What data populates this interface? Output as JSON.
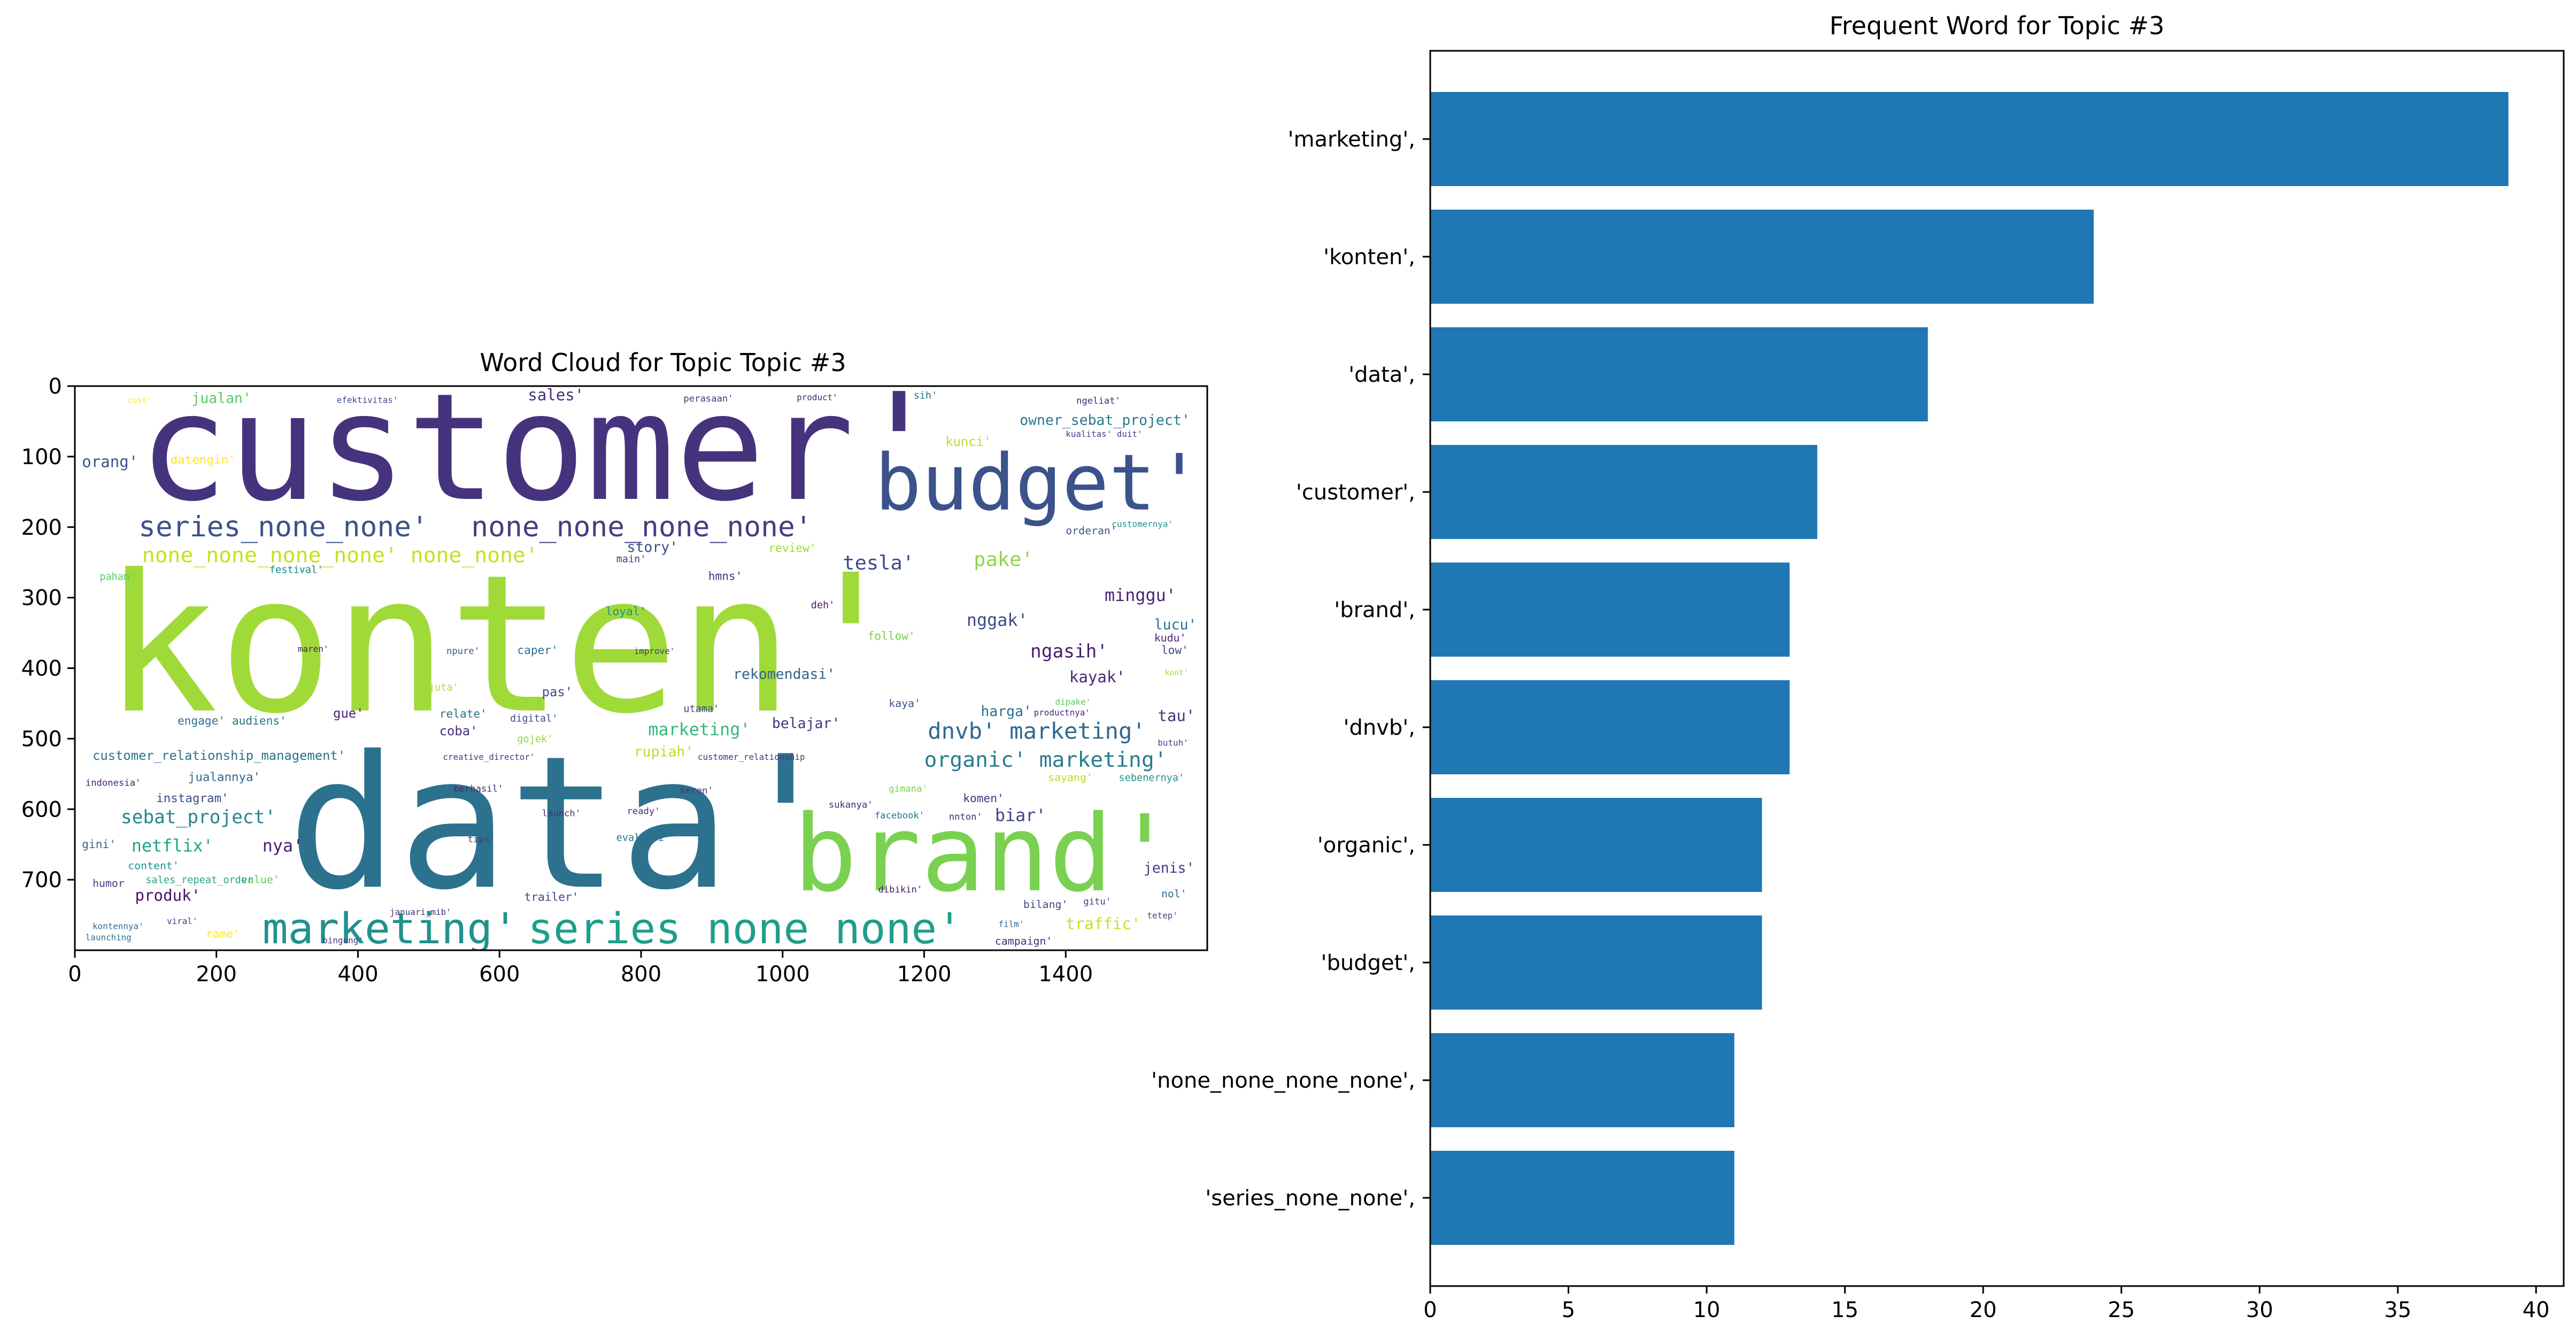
{
  "chart_data": [
    {
      "type": "image",
      "subtype": "wordcloud",
      "title": "Word Cloud for Topic Topic #3",
      "xlim": [
        0,
        1600
      ],
      "ylim": [
        800,
        0
      ],
      "x_ticks": [
        0,
        200,
        400,
        600,
        800,
        1000,
        1200,
        1400
      ],
      "y_ticks": [
        0,
        100,
        200,
        300,
        400,
        500,
        600,
        700
      ],
      "words": [
        {
          "text": "customer'",
          "x": 90,
          "y": 160,
          "size": 210,
          "color": "#46337e"
        },
        {
          "text": "konten'",
          "x": 40,
          "y": 460,
          "size": 270,
          "color": "#a0da39"
        },
        {
          "text": "data'",
          "x": 300,
          "y": 710,
          "size": 260,
          "color": "#2c728e"
        },
        {
          "text": "budget'",
          "x": 1130,
          "y": 175,
          "size": 110,
          "color": "#3b528b"
        },
        {
          "text": "brand'",
          "x": 1015,
          "y": 715,
          "size": 150,
          "color": "#7ad151"
        },
        {
          "text": "series_none_none'",
          "x": 90,
          "y": 213,
          "size": 40,
          "color": "#3b528b"
        },
        {
          "text": "none_none_none_none'",
          "x": 560,
          "y": 213,
          "size": 40,
          "color": "#433e85"
        },
        {
          "text": "none_none_none_none' none_none'",
          "x": 95,
          "y": 250,
          "size": 30,
          "color": "#c8e020"
        },
        {
          "text": "marketing'",
          "x": 265,
          "y": 790,
          "size": 60,
          "color": "#21918c"
        },
        {
          "text": "series_none_none'",
          "x": 640,
          "y": 790,
          "size": 60,
          "color": "#1f9e89"
        },
        {
          "text": "dnvb' marketing'",
          "x": 1205,
          "y": 500,
          "size": 32,
          "color": "#31688e"
        },
        {
          "text": "organic' marketing'",
          "x": 1200,
          "y": 540,
          "size": 30,
          "color": "#287d8e"
        },
        {
          "text": "tesla'",
          "x": 1085,
          "y": 260,
          "size": 28,
          "color": "#3e4a89"
        },
        {
          "text": "pake'",
          "x": 1270,
          "y": 255,
          "size": 28,
          "color": "#8fd744"
        },
        {
          "text": "sales'",
          "x": 640,
          "y": 20,
          "size": 22,
          "color": "#472d7b"
        },
        {
          "text": "jualan'",
          "x": 165,
          "y": 24,
          "size": 20,
          "color": "#5ec962"
        },
        {
          "text": "owner_sebat_project'",
          "x": 1335,
          "y": 55,
          "size": 20,
          "color": "#2a788e"
        },
        {
          "text": "kunci'",
          "x": 1230,
          "y": 85,
          "size": 18,
          "color": "#b5de2b"
        },
        {
          "text": "orang'",
          "x": 10,
          "y": 115,
          "size": 22,
          "color": "#3b528b"
        },
        {
          "text": "datengin'",
          "x": 135,
          "y": 110,
          "size": 17,
          "color": "#fde725"
        },
        {
          "text": "story'",
          "x": 780,
          "y": 235,
          "size": 20,
          "color": "#3e4a89"
        },
        {
          "text": "review'",
          "x": 980,
          "y": 235,
          "size": 16,
          "color": "#a0da39"
        },
        {
          "text": "minggu'",
          "x": 1455,
          "y": 305,
          "size": 24,
          "color": "#482677"
        },
        {
          "text": "nggak'",
          "x": 1260,
          "y": 340,
          "size": 24,
          "color": "#3e4a89"
        },
        {
          "text": "ngasih'",
          "x": 1350,
          "y": 385,
          "size": 26,
          "color": "#481f70"
        },
        {
          "text": "lucu'",
          "x": 1525,
          "y": 345,
          "size": 20,
          "color": "#2c728e"
        },
        {
          "text": "rekomendasi'",
          "x": 930,
          "y": 415,
          "size": 20,
          "color": "#33638d"
        },
        {
          "text": "kayak'",
          "x": 1405,
          "y": 420,
          "size": 22,
          "color": "#482878"
        },
        {
          "text": "marketing'",
          "x": 810,
          "y": 495,
          "size": 24,
          "color": "#35b779"
        },
        {
          "text": "belajar'",
          "x": 985,
          "y": 485,
          "size": 20,
          "color": "#46337e"
        },
        {
          "text": "harga'",
          "x": 1280,
          "y": 468,
          "size": 20,
          "color": "#2e6f8e"
        },
        {
          "text": "tau'",
          "x": 1530,
          "y": 475,
          "size": 22,
          "color": "#443983"
        },
        {
          "text": "rupiah'",
          "x": 790,
          "y": 525,
          "size": 20,
          "color": "#bddf26"
        },
        {
          "text": "customer_relationship_management'",
          "x": 25,
          "y": 530,
          "size": 18,
          "color": "#2c728e"
        },
        {
          "text": "sebat_project'",
          "x": 65,
          "y": 620,
          "size": 26,
          "color": "#24868e"
        },
        {
          "text": "netflix'",
          "x": 80,
          "y": 660,
          "size": 24,
          "color": "#20a486"
        },
        {
          "text": "nya'",
          "x": 265,
          "y": 660,
          "size": 24,
          "color": "#482173"
        },
        {
          "text": "produk'",
          "x": 85,
          "y": 730,
          "size": 22,
          "color": "#471164"
        },
        {
          "text": "biar'",
          "x": 1300,
          "y": 617,
          "size": 24,
          "color": "#414487"
        },
        {
          "text": "jenis'",
          "x": 1510,
          "y": 690,
          "size": 20,
          "color": "#443983"
        },
        {
          "text": "traffic'",
          "x": 1400,
          "y": 770,
          "size": 22,
          "color": "#c8e020"
        },
        {
          "text": "gue'",
          "x": 365,
          "y": 470,
          "size": 18,
          "color": "#482475"
        },
        {
          "text": "coba'",
          "x": 515,
          "y": 495,
          "size": 18,
          "color": "#472f7d"
        },
        {
          "text": "instagram'",
          "x": 115,
          "y": 590,
          "size": 17,
          "color": "#3e4989"
        },
        {
          "text": "jualannya'",
          "x": 160,
          "y": 560,
          "size": 17,
          "color": "#31688e"
        },
        {
          "text": "engage' audiens'",
          "x": 145,
          "y": 480,
          "size": 16,
          "color": "#2c728e"
        },
        {
          "text": "kaya'",
          "x": 1150,
          "y": 455,
          "size": 15,
          "color": "#3b528b"
        },
        {
          "text": "komen'",
          "x": 1255,
          "y": 590,
          "size": 16,
          "color": "#46337e"
        },
        {
          "text": "loyal'",
          "x": 750,
          "y": 325,
          "size": 16,
          "color": "#21918c"
        },
        {
          "text": "hmns'",
          "x": 895,
          "y": 275,
          "size": 16,
          "color": "#46337e"
        },
        {
          "text": "caper'",
          "x": 625,
          "y": 380,
          "size": 16,
          "color": "#2e6f8e"
        },
        {
          "text": "relate'",
          "x": 515,
          "y": 470,
          "size": 16,
          "color": "#2c728e"
        },
        {
          "text": "pas'",
          "x": 660,
          "y": 440,
          "size": 18,
          "color": "#3e4a89"
        },
        {
          "text": "follow'",
          "x": 1120,
          "y": 360,
          "size": 16,
          "color": "#7ad151"
        },
        {
          "text": "trailer'",
          "x": 635,
          "y": 730,
          "size": 16,
          "color": "#404688"
        },
        {
          "text": "value'",
          "x": 235,
          "y": 705,
          "size": 15,
          "color": "#5ec962"
        },
        {
          "text": "rame'",
          "x": 185,
          "y": 782,
          "size": 16,
          "color": "#fde725"
        },
        {
          "text": "content'",
          "x": 75,
          "y": 685,
          "size": 15,
          "color": "#21918c"
        },
        {
          "text": "gini'",
          "x": 10,
          "y": 655,
          "size": 16,
          "color": "#31688e"
        },
        {
          "text": "humor",
          "x": 25,
          "y": 710,
          "size": 15,
          "color": "#433e85"
        },
        {
          "text": "festival'",
          "x": 275,
          "y": 265,
          "size": 14,
          "color": "#21918c"
        },
        {
          "text": "main'",
          "x": 765,
          "y": 250,
          "size": 14,
          "color": "#443983"
        },
        {
          "text": "paham'",
          "x": 35,
          "y": 275,
          "size": 14,
          "color": "#5ec962"
        },
        {
          "text": "deh'",
          "x": 1040,
          "y": 315,
          "size": 14,
          "color": "#481b6d"
        },
        {
          "text": "orderan'",
          "x": 1400,
          "y": 210,
          "size": 15,
          "color": "#3b528b"
        },
        {
          "text": "low'",
          "x": 1535,
          "y": 380,
          "size": 16,
          "color": "#404688"
        },
        {
          "text": "kudu'",
          "x": 1525,
          "y": 362,
          "size": 15,
          "color": "#482677"
        },
        {
          "text": "sayang'",
          "x": 1375,
          "y": 560,
          "size": 15,
          "color": "#b5de2b"
        },
        {
          "text": "sebenernya'",
          "x": 1475,
          "y": 560,
          "size": 14,
          "color": "#21918c"
        },
        {
          "text": "campaign'",
          "x": 1300,
          "y": 792,
          "size": 15,
          "color": "#482878"
        },
        {
          "text": "bilang'",
          "x": 1340,
          "y": 740,
          "size": 15,
          "color": "#3e4a89"
        },
        {
          "text": "nol'",
          "x": 1535,
          "y": 725,
          "size": 15,
          "color": "#2e6f8e"
        },
        {
          "text": "nnton'",
          "x": 1235,
          "y": 615,
          "size": 13,
          "color": "#482878"
        },
        {
          "text": "facebook'",
          "x": 1130,
          "y": 613,
          "size": 13,
          "color": "#2c728e"
        },
        {
          "text": "sukanya'",
          "x": 1065,
          "y": 598,
          "size": 13,
          "color": "#482677"
        },
        {
          "text": "gimana'",
          "x": 1150,
          "y": 575,
          "size": 13,
          "color": "#7ad151"
        },
        {
          "text": "keren'",
          "x": 855,
          "y": 578,
          "size": 13,
          "color": "#46337e"
        },
        {
          "text": "evaluasi'",
          "x": 765,
          "y": 645,
          "size": 14,
          "color": "#2c728e"
        },
        {
          "text": "dibikin'",
          "x": 1135,
          "y": 718,
          "size": 13,
          "color": "#481a6c"
        },
        {
          "text": "berhasil'",
          "x": 535,
          "y": 575,
          "size": 13,
          "color": "#482475"
        },
        {
          "text": "launch'",
          "x": 660,
          "y": 610,
          "size": 13,
          "color": "#46337e"
        },
        {
          "text": "ready'",
          "x": 780,
          "y": 607,
          "size": 13,
          "color": "#472d7b"
        },
        {
          "text": "digital'",
          "x": 615,
          "y": 476,
          "size": 14,
          "color": "#3e4a89"
        },
        {
          "text": "utama'",
          "x": 860,
          "y": 462,
          "size": 14,
          "color": "#404688"
        },
        {
          "text": "juta'",
          "x": 500,
          "y": 432,
          "size": 14,
          "color": "#b5de2b"
        },
        {
          "text": "npure'",
          "x": 525,
          "y": 380,
          "size": 13,
          "color": "#3b528b"
        },
        {
          "text": "improve'",
          "x": 790,
          "y": 380,
          "size": 12,
          "color": "#433e85"
        },
        {
          "text": "maren'",
          "x": 315,
          "y": 377,
          "size": 12,
          "color": "#481b6d"
        },
        {
          "text": "gojek'",
          "x": 625,
          "y": 505,
          "size": 14,
          "color": "#8fd744"
        },
        {
          "text": "tips'",
          "x": 555,
          "y": 647,
          "size": 13,
          "color": "#433e85"
        },
        {
          "text": "januari_mib'",
          "x": 445,
          "y": 750,
          "size": 12,
          "color": "#46337e"
        },
        {
          "text": "bingung'",
          "x": 350,
          "y": 790,
          "size": 12,
          "color": "#443983"
        },
        {
          "text": "sales_repeat_order",
          "x": 100,
          "y": 705,
          "size": 14,
          "color": "#22a884"
        },
        {
          "text": "kontennya'",
          "x": 25,
          "y": 770,
          "size": 12,
          "color": "#2e6f8e"
        },
        {
          "text": "launching",
          "x": 15,
          "y": 786,
          "size": 12,
          "color": "#2c728e"
        },
        {
          "text": "indonesia'",
          "x": 15,
          "y": 567,
          "size": 13,
          "color": "#481a6c"
        },
        {
          "text": "viral'",
          "x": 130,
          "y": 763,
          "size": 12,
          "color": "#404688"
        },
        {
          "text": "creative_director'",
          "x": 520,
          "y": 530,
          "size": 12,
          "color": "#443983"
        },
        {
          "text": "customer_relationship",
          "x": 880,
          "y": 530,
          "size": 12,
          "color": "#46337e"
        },
        {
          "text": "ngeliat'",
          "x": 1415,
          "y": 25,
          "size": 13,
          "color": "#482878"
        },
        {
          "text": "perasaan'",
          "x": 860,
          "y": 22,
          "size": 13,
          "color": "#46337e"
        },
        {
          "text": "product'",
          "x": 1020,
          "y": 20,
          "size": 12,
          "color": "#482475"
        },
        {
          "text": "efektivitas'",
          "x": 370,
          "y": 24,
          "size": 12,
          "color": "#3e4a89"
        },
        {
          "text": "sih'",
          "x": 1185,
          "y": 18,
          "size": 14,
          "color": "#2c728e"
        },
        {
          "text": "kualitas' duit'",
          "x": 1400,
          "y": 72,
          "size": 12,
          "color": "#404688"
        },
        {
          "text": "customernya'",
          "x": 1465,
          "y": 200,
          "size": 12,
          "color": "#21918c"
        },
        {
          "text": "festival'",
          "x": 275,
          "y": 265,
          "size": 14,
          "color": "#21918c"
        },
        {
          "text": "film'",
          "x": 1305,
          "y": 767,
          "size": 12,
          "color": "#31688e"
        },
        {
          "text": "tetep'",
          "x": 1515,
          "y": 755,
          "size": 12,
          "color": "#404688"
        },
        {
          "text": "gitu'",
          "x": 1425,
          "y": 735,
          "size": 13,
          "color": "#433e85"
        },
        {
          "text": "butuh'",
          "x": 1530,
          "y": 510,
          "size": 12,
          "color": "#433e85"
        },
        {
          "text": "dipake'",
          "x": 1385,
          "y": 452,
          "size": 12,
          "color": "#5ec962"
        },
        {
          "text": "productnya'",
          "x": 1355,
          "y": 467,
          "size": 12,
          "color": "#482878"
        },
        {
          "text": "cost'",
          "x": 75,
          "y": 24,
          "size": 11,
          "color": "#fde725"
        },
        {
          "text": "kont'",
          "x": 1540,
          "y": 410,
          "size": 11,
          "color": "#a0da39"
        }
      ]
    },
    {
      "type": "bar",
      "orientation": "horizontal",
      "title": "Frequent Word for Topic #3",
      "categories": [
        "'marketing',",
        "'konten',",
        "'data',",
        "'customer',",
        "'brand',",
        "'dnvb',",
        "'organic',",
        "'budget',",
        "'none_none_none_none',",
        "'series_none_none',"
      ],
      "values": [
        39,
        24,
        18,
        14,
        13,
        13,
        12,
        12,
        11,
        11
      ],
      "xlim": [
        0,
        41
      ],
      "x_ticks": [
        0,
        5,
        10,
        15,
        20,
        25,
        30,
        35,
        40
      ],
      "xlabel": "",
      "ylabel": "",
      "bar_color": "#1f77b4"
    }
  ]
}
